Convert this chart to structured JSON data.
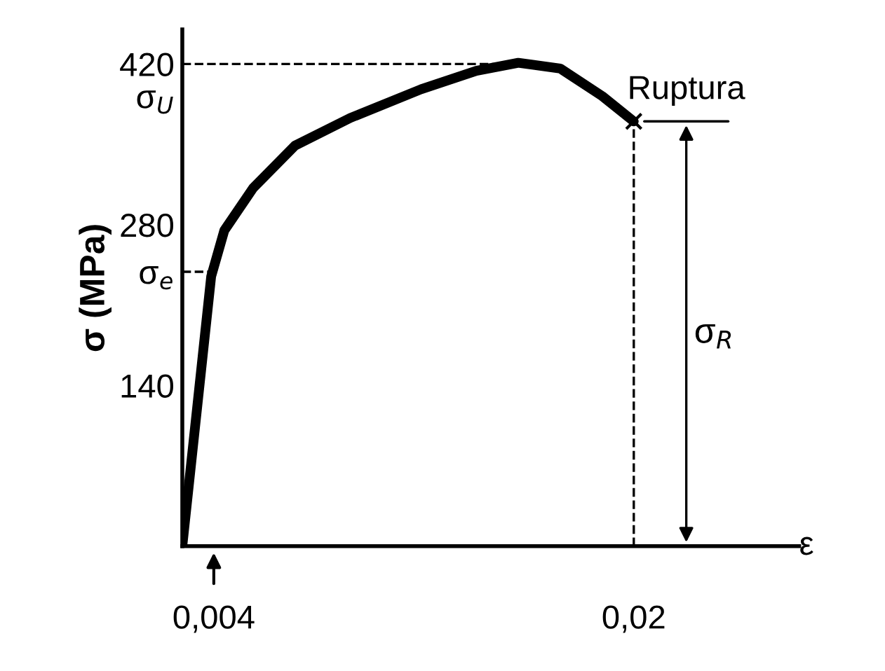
{
  "chart_data": {
    "type": "line",
    "ylabel": "σ (MPa)",
    "xlabel": "ε",
    "xlim": [
      0.0028,
      0.0263
    ],
    "ylim": [
      0,
      450
    ],
    "xticks": [
      {
        "value": 0.004,
        "label": "0,004"
      },
      {
        "value": 0.02,
        "label": "0,02"
      }
    ],
    "yticks": [
      140,
      280,
      420,
      {
        "value": 239,
        "label": "σ$_{e}$"
      },
      {
        "value": 392,
        "label": "σ$_{U}$"
      }
    ],
    "grid": false,
    "legend": false,
    "series": [
      {
        "color": "#000000",
        "x": [
          0.0028,
          0.0039,
          0.0044,
          0.0055,
          0.0071,
          0.0092,
          0.0119,
          0.014,
          0.0156,
          0.0172,
          0.0188,
          0.02
        ],
        "values": [
          0,
          235,
          275,
          312,
          349,
          373,
          398,
          414,
          421,
          416,
          392,
          370
        ]
      },
      {
        "color": "#000000",
        "line_style": "dashed",
        "x": [
          0.0028,
          0.0156
        ],
        "values": [
          420,
          420
        ]
      },
      {
        "color": "#000000",
        "line_style": "dashed",
        "x": [
          0.0028,
          0.0039
        ],
        "values": [
          239,
          239
        ]
      },
      {
        "color": "#000000",
        "line_style": "dashed",
        "x": [
          0.02,
          0.02
        ],
        "values": [
          0,
          370
        ]
      },
      {
        "color": "#000000",
        "type": "scatter",
        "marker": "cross",
        "x": [
          0.02
        ],
        "values": [
          370
        ]
      },
      {
        "color": "#000000",
        "x": [
          0.0204,
          0.0236
        ],
        "values": [
          370,
          370
        ]
      }
    ],
    "annotations": [
      "Ruptura",
      "σ$_{R}$"
    ]
  }
}
